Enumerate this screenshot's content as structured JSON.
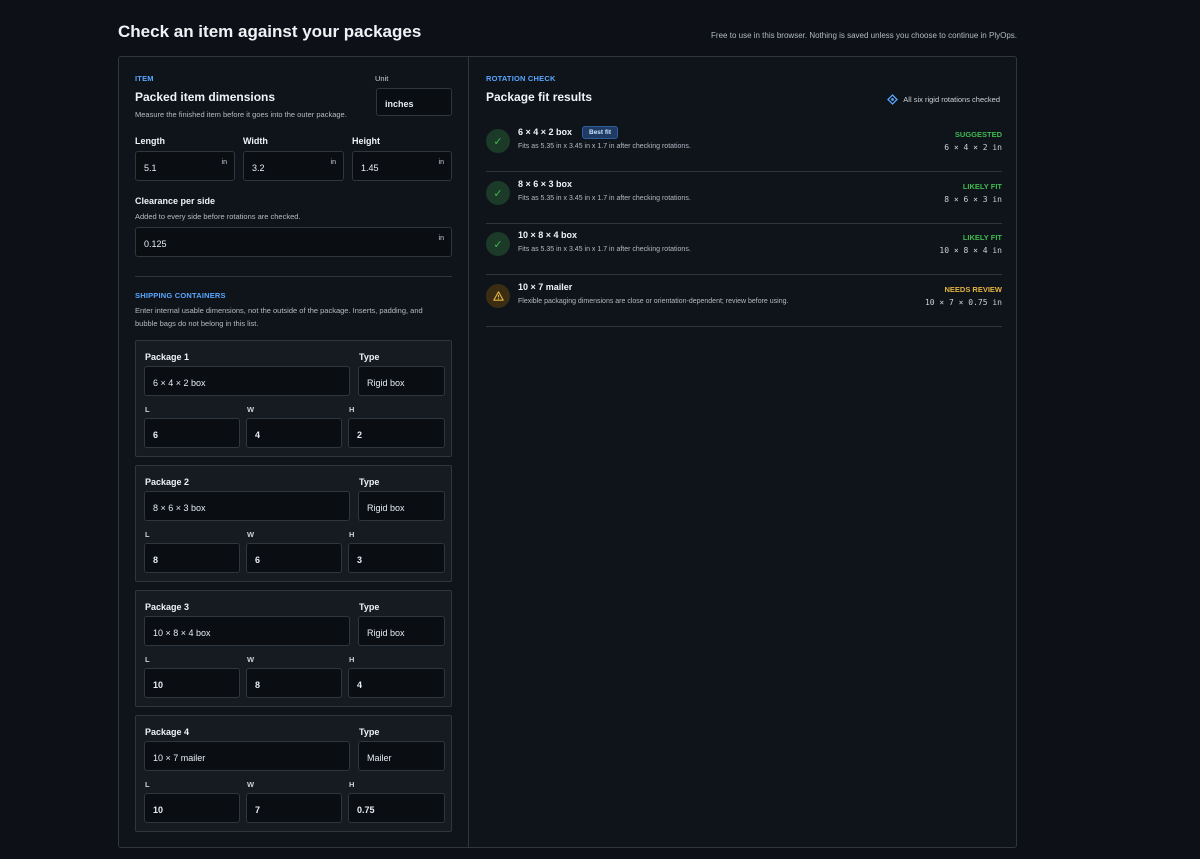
{
  "page": {
    "title": "Check an item against your packages",
    "note": "Free to use in this browser. Nothing is saved unless you choose to continue in PlyOps."
  },
  "item": {
    "eyebrow": "ITEM",
    "title": "Packed item dimensions",
    "subtitle": "Measure the finished item before it goes into the outer package.",
    "unit_label": "Unit",
    "unit_value": "inches",
    "length_label": "Length",
    "length_value": "5.1",
    "width_label": "Width",
    "width_value": "3.2",
    "height_label": "Height",
    "height_value": "1.45",
    "unit_suffix": "in",
    "clearance_label": "Clearance per side",
    "clearance_help": "Added to every side before rotations are checked.",
    "clearance_value": "0.125"
  },
  "containers": {
    "eyebrow": "SHIPPING CONTAINERS",
    "help_line1": "Enter internal usable dimensions, not the outside of the package. Inserts, padding, and",
    "help_line2": "bubble bags do not belong in this list.",
    "type_label": "Type",
    "l_label": "L",
    "w_label": "W",
    "h_label": "H",
    "packages": [
      {
        "label": "Package 1",
        "name": "6 × 4 × 2 box",
        "type": "Rigid box",
        "l": "6",
        "w": "4",
        "h": "2"
      },
      {
        "label": "Package 2",
        "name": "8 × 6 × 3 box",
        "type": "Rigid box",
        "l": "8",
        "w": "6",
        "h": "3"
      },
      {
        "label": "Package 3",
        "name": "10 × 8 × 4 box",
        "type": "Rigid box",
        "l": "10",
        "w": "8",
        "h": "4"
      },
      {
        "label": "Package 4",
        "name": "10 × 7 mailer",
        "type": "Mailer",
        "l": "10",
        "w": "7",
        "h": "0.75"
      }
    ]
  },
  "results": {
    "eyebrow": "ROTATION CHECK",
    "title": "Package fit results",
    "checked_note": "All six rigid rotations checked",
    "items": [
      {
        "name": "6 × 4 × 2 box",
        "badge": "Best fit",
        "desc": "Fits as 5.35 in x 3.45 in x 1.7 in after checking rotations.",
        "status": "SUGGESTED",
        "dims": "6 × 4 × 2 in",
        "state": "ok"
      },
      {
        "name": "8 × 6 × 3 box",
        "badge": "",
        "desc": "Fits as 5.35 in x 3.45 in x 1.7 in after checking rotations.",
        "status": "LIKELY FIT",
        "dims": "8 × 6 × 3 in",
        "state": "ok"
      },
      {
        "name": "10 × 8 × 4 box",
        "badge": "",
        "desc": "Fits as 5.35 in x 3.45 in x 1.7 in after checking rotations.",
        "status": "LIKELY FIT",
        "dims": "10 × 8 × 4 in",
        "state": "ok"
      },
      {
        "name": "10 × 7 mailer",
        "badge": "",
        "desc": "Flexible packaging dimensions are close or orientation-dependent; review before using.",
        "status": "NEEDS REVIEW",
        "dims": "10 × 7 × 0.75 in",
        "state": "warn"
      }
    ]
  },
  "colors": {
    "accent": "#58a6ff",
    "success": "#3fb950",
    "warning": "#e3b341",
    "background": "#0d1117"
  },
  "icons": {
    "fit_ok": "check-circle-icon",
    "fit_warn": "warning-triangle-icon",
    "rotation": "rotation-target-icon"
  }
}
